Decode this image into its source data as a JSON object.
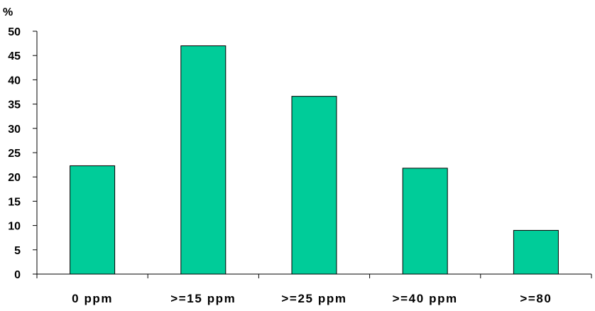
{
  "chart_data": {
    "type": "bar",
    "categories": [
      "0 ppm",
      ">=15 ppm",
      ">=25 ppm",
      ">=40 ppm",
      ">=80"
    ],
    "values": [
      22.3,
      47.0,
      36.6,
      21.8,
      9.0
    ],
    "ylabel": "%",
    "ylim": [
      0,
      50
    ],
    "yticks": [
      0,
      5,
      10,
      15,
      20,
      25,
      30,
      35,
      40,
      45,
      50
    ],
    "grid": false,
    "legend": "none",
    "bar_color": "#00CC99",
    "bar_edge_color": "#000000"
  }
}
